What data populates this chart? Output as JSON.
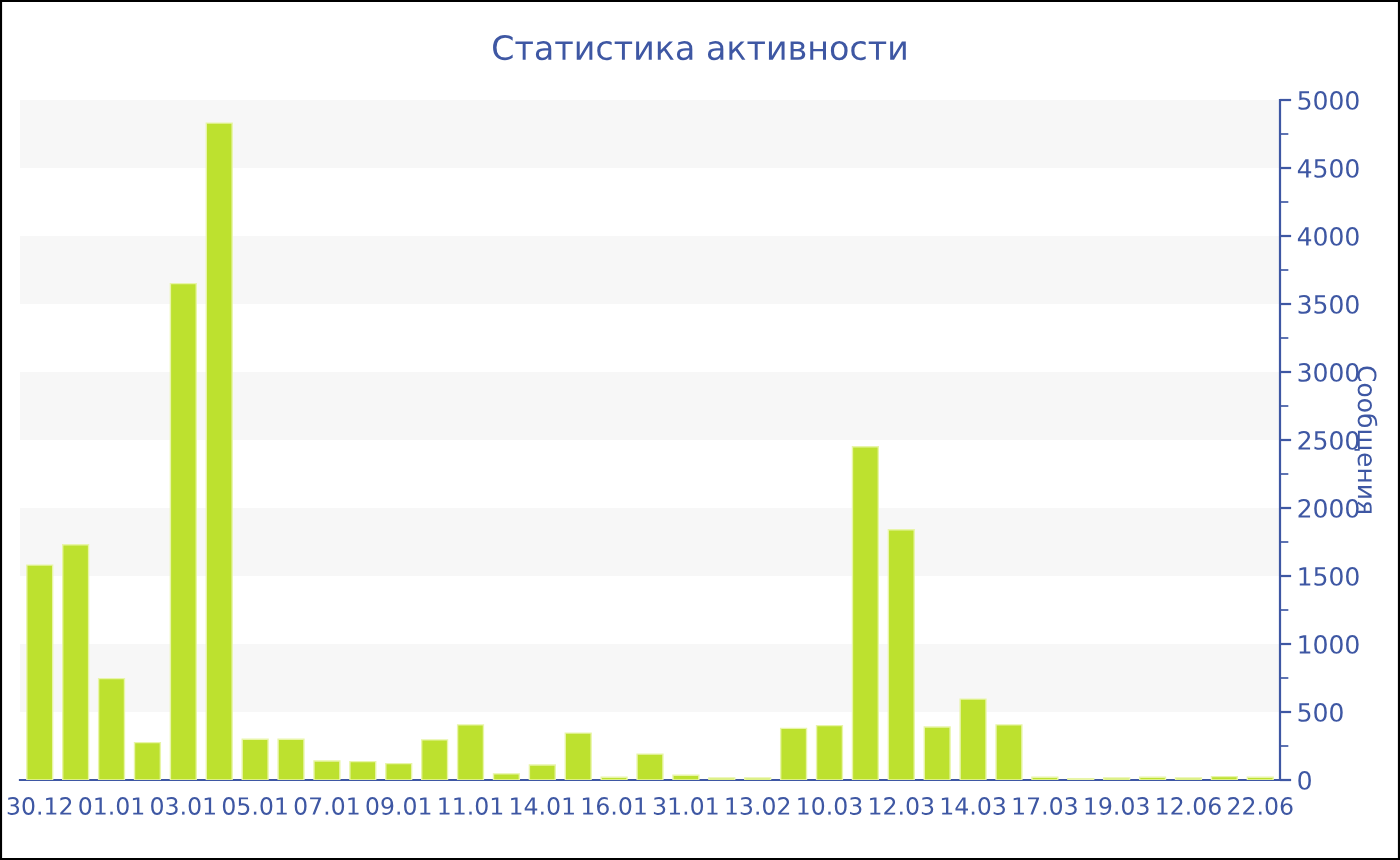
{
  "chart_data": {
    "type": "bar",
    "title": "Статистика активности",
    "ylabel": "Сообщения",
    "categories": [
      "30.12",
      null,
      "01.01",
      null,
      "03.01",
      null,
      "05.01",
      null,
      "07.01",
      null,
      "09.01",
      null,
      "11.01",
      null,
      "14.01",
      null,
      "16.01",
      null,
      "31.01",
      null,
      "13.02",
      null,
      "10.03",
      null,
      "12.03",
      null,
      "14.03",
      null,
      "17.03",
      null,
      "19.03",
      null,
      "12.06",
      null,
      "22.06"
    ],
    "values": [
      1580,
      1730,
      745,
      275,
      3650,
      4830,
      300,
      300,
      140,
      135,
      120,
      295,
      405,
      45,
      110,
      345,
      20,
      190,
      35,
      15,
      15,
      380,
      400,
      2450,
      1840,
      390,
      595,
      405,
      20,
      10,
      15,
      20,
      15,
      25,
      20
    ],
    "color": "#bde12f",
    "ylim": [
      0,
      5000
    ],
    "yticks": [
      0,
      500,
      1000,
      1500,
      2000,
      2500,
      3000,
      3500,
      4000,
      4500,
      5000
    ],
    "bands": [
      {
        "axis": "y",
        "from": 500,
        "to": 1000,
        "color": "#f7f7f7"
      },
      {
        "axis": "y",
        "from": 1500,
        "to": 2000,
        "color": "#f7f7f7"
      },
      {
        "axis": "y",
        "from": 2500,
        "to": 3000,
        "color": "#f7f7f7"
      },
      {
        "axis": "y",
        "from": 3500,
        "to": 4000,
        "color": "#f7f7f7"
      },
      {
        "axis": "y",
        "from": 4500,
        "to": 5000,
        "color": "#f7f7f7"
      }
    ],
    "grid": false,
    "legend": false
  }
}
